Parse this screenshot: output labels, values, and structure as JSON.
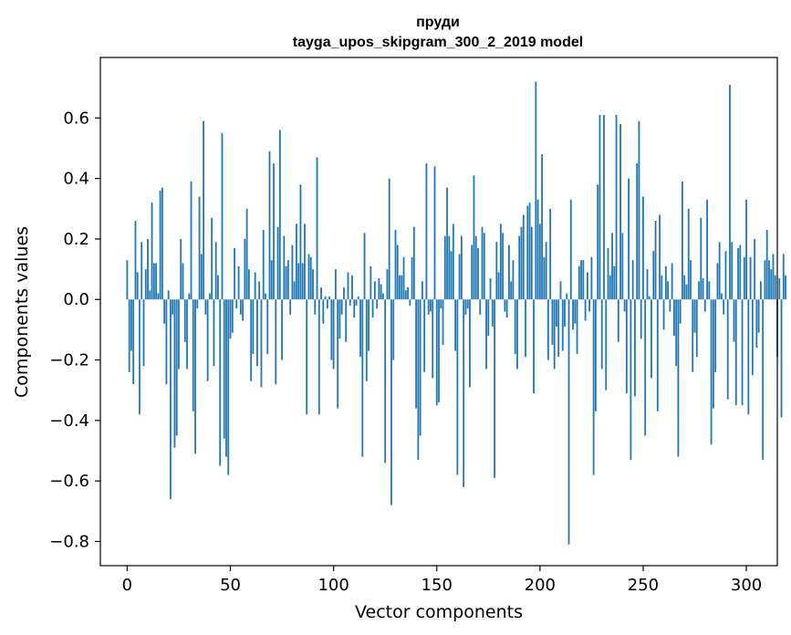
{
  "chart_data": {
    "type": "bar",
    "title": "пруди",
    "subtitle": "tayga_upos_skipgram_300_2_2019 model",
    "xlabel": "Vector components",
    "ylabel": "Components values",
    "xlim": [
      -13,
      315
    ],
    "ylim": [
      -0.88,
      0.8
    ],
    "xticks": [
      0,
      50,
      100,
      150,
      200,
      250,
      300
    ],
    "yticks": [
      -0.8,
      -0.6,
      -0.4,
      -0.2,
      0.0,
      0.2,
      0.4,
      0.6
    ],
    "xtick_labels": [
      "0",
      "50",
      "100",
      "150",
      "200",
      "250",
      "300"
    ],
    "ytick_labels": [
      "−0.8",
      "−0.6",
      "−0.4",
      "−0.2",
      "0.0",
      "0.2",
      "0.4",
      "0.6"
    ],
    "x_start": 0,
    "values": [
      0.13,
      -0.24,
      -0.17,
      -0.28,
      0.26,
      0.09,
      -0.38,
      0.19,
      -0.22,
      0.1,
      0.2,
      0.03,
      0.32,
      0.12,
      0.12,
      0.02,
      0.36,
      0.37,
      -0.08,
      -0.28,
      0.03,
      -0.66,
      -0.05,
      -0.49,
      -0.45,
      -0.23,
      0.2,
      0.12,
      -0.14,
      -0.23,
      0.02,
      0.39,
      -0.37,
      -0.51,
      -0.03,
      0.34,
      0.15,
      0.59,
      -0.05,
      -0.27,
      0.02,
      0.27,
      -0.22,
      0.19,
      0.08,
      -0.55,
      0.55,
      -0.46,
      -0.52,
      -0.58,
      -0.13,
      -0.11,
      0.17,
      -0.03,
      0.11,
      -0.05,
      -0.07,
      0.2,
      0.3,
      0.1,
      -0.27,
      -0.18,
      0.09,
      -0.22,
      0.06,
      -0.29,
      0.23,
      0.02,
      -0.18,
      0.49,
      0.13,
      0.45,
      -0.28,
      0.24,
      0.56,
      -0.2,
      0.21,
      0.11,
      0.13,
      -0.05,
      0.18,
      0.06,
      0.25,
      0.12,
      0.38,
      0.12,
      0.25,
      -0.38,
      0.15,
      0.14,
      0.1,
      -0.05,
      0.47,
      -0.38,
      0.04,
      -0.08,
      0.01,
      -0.03,
      0.01,
      -0.2,
      -0.23,
      0.1,
      -0.36,
      -0.13,
      -0.05,
      0.04,
      -0.14,
      0.09,
      -0.02,
      0.08,
      -0.06,
      -0.02,
      0.01,
      -0.19,
      -0.52,
      0.22,
      -0.27,
      -0.17,
      0.11,
      -0.06,
      0.06,
      -0.03,
      0.07,
      0.05,
      0.02,
      -0.54,
      0.1,
      0.4,
      -0.68,
      -0.2,
      0.23,
      0.18,
      0.08,
      0.08,
      0.14,
      0.03,
      0.04,
      -0.02,
      0.14,
      0.24,
      -0.36,
      -0.53,
      -0.45,
      0.06,
      -0.24,
      0.45,
      -0.05,
      -0.04,
      -0.26,
      0.44,
      -0.35,
      -0.34,
      -0.03,
      -0.15,
      0.21,
      0.37,
      0.21,
      0.16,
      0.25,
      -0.17,
      -0.58,
      0.15,
      0.21,
      -0.62,
      -0.05,
      -0.03,
      -0.29,
      0.18,
      0.41,
      0.21,
      0.17,
      -0.05,
      0.24,
      0.22,
      -0.23,
      -0.12,
      0.07,
      -0.09,
      -0.59,
      0.19,
      0.09,
      0.25,
      0.22,
      -0.04,
      -0.06,
      0.18,
      0.06,
      0.13,
      -0.18,
      -0.23,
      0.21,
      0.24,
      0.28,
      -0.19,
      0.31,
      0.32,
      0.24,
      -0.31,
      0.72,
      0.33,
      0.25,
      0.48,
      0.14,
      0.19,
      -0.2,
      0.3,
      -0.15,
      -0.23,
      -0.09,
      -0.19,
      0.06,
      -0.17,
      -0.09,
      0.02,
      -0.81,
      0.33,
      -0.1,
      -0.08,
      -0.18,
      0.11,
      0.13,
      0.13,
      -0.07,
      0.09,
      -0.04,
      0.14,
      -0.58,
      -0.37,
      0.38,
      0.61,
      -0.23,
      0.61,
      -0.3,
      0.17,
      0.08,
      0.22,
      0.11,
      0.61,
      -0.14,
      0.58,
      0.22,
      -0.04,
      -0.31,
      0.4,
      -0.53,
      0.13,
      -0.32,
      0.45,
      0.59,
      -0.13,
      0.34,
      -0.45,
      0.1,
      0.01,
      -0.26,
      0.16,
      0.26,
      -0.37,
      0.28,
      0.08,
      -0.1,
      0.11,
      0.06,
      -0.04,
      0.12,
      -0.12,
      -0.22,
      -0.52,
      -0.08,
      0.39,
      0.08,
      0.05,
      0.3,
      0.13,
      -0.24,
      -0.11,
      -0.19,
      0.06,
      0.27,
      0.07,
      -0.04,
      0.33,
      0.06,
      -0.48,
      -0.36,
      -0.24,
      0.12,
      0.19,
      0.02,
      -0.05,
      0.16,
      -0.33,
      0.71,
      0.19,
      -0.14,
      -0.35,
      0.17,
      0.18,
      -0.35,
      0.14,
      0.33,
      -0.38,
      0.14,
      -0.25,
      0.2,
      -0.16,
      -0.11,
      0.06,
      -0.53,
      0.13,
      0.23,
      0.13,
      0.1,
      0.15,
      0.08,
      -0.19,
      0.07,
      -0.39,
      0.15,
      0.08
    ]
  }
}
